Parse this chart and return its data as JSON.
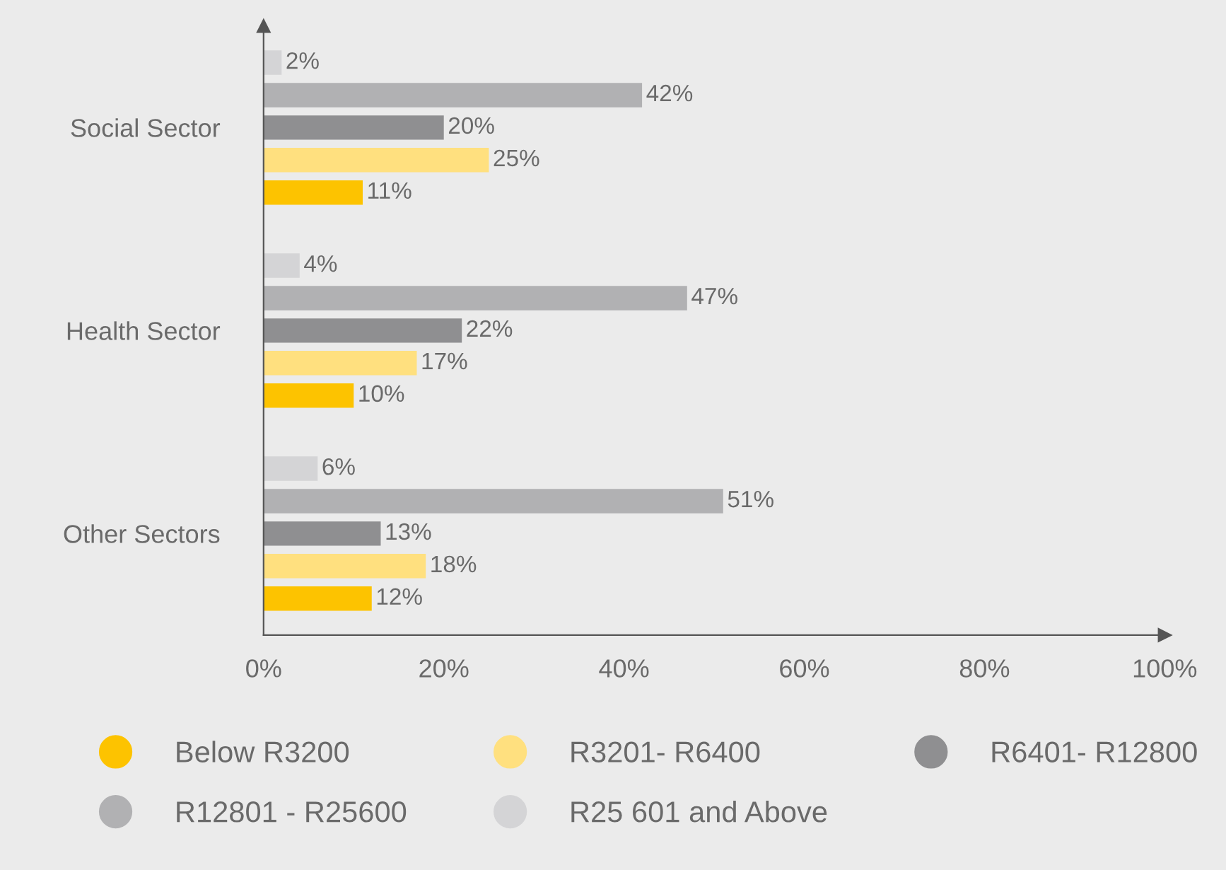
{
  "chart_data": {
    "type": "bar",
    "orientation": "horizontal",
    "categories": [
      "Social Sector",
      "Health Sector",
      "Other Sectors"
    ],
    "series": [
      {
        "name": "Below R3200",
        "color": "#fdc300",
        "values": [
          11,
          10,
          12
        ],
        "value_labels": [
          "11%",
          "10%",
          "12%"
        ]
      },
      {
        "name": "R3201- R6400",
        "color": "#ffe07f",
        "values": [
          25,
          17,
          18
        ],
        "value_labels": [
          "25%",
          "17%",
          "18%"
        ]
      },
      {
        "name": "R6401- R12800",
        "color": "#8f8f91",
        "values": [
          20,
          22,
          13
        ],
        "value_labels": [
          "20%",
          "22%",
          "13%"
        ]
      },
      {
        "name": "R12801 - R25600",
        "color": "#b1b1b3",
        "values": [
          42,
          47,
          51
        ],
        "value_labels": [
          "42%",
          "47%",
          "51%"
        ]
      },
      {
        "name": "R25 601 and Above",
        "color": "#d4d4d6",
        "values": [
          2,
          4,
          6
        ],
        "value_labels": [
          "2%",
          "4%",
          "6%"
        ]
      }
    ],
    "xlim": [
      0,
      100
    ],
    "xticks": [
      {
        "value": 0,
        "label": "0%"
      },
      {
        "value": 20,
        "label": "20%"
      },
      {
        "value": 40,
        "label": "40%"
      },
      {
        "value": 60,
        "label": "60%"
      },
      {
        "value": 80,
        "label": "80%"
      },
      {
        "value": 100,
        "label": "100%"
      }
    ],
    "legend": "bottom",
    "grid": false
  }
}
